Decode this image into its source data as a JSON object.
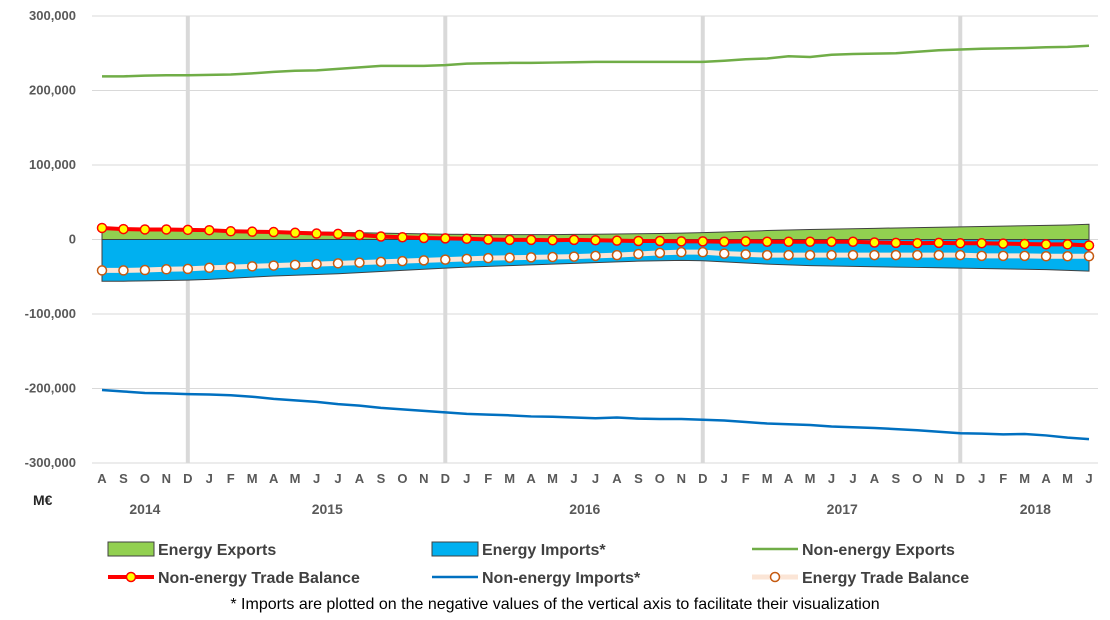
{
  "chart_data": {
    "type": "line",
    "unit_label": "M€",
    "note": "* Imports are plotted on the negative values of the vertical axis to facilitate their visualization",
    "ylim": [
      -300000,
      300000
    ],
    "yticks": [
      300000,
      200000,
      100000,
      0,
      -100000,
      -200000,
      -300000
    ],
    "ytick_labels": [
      "300,000",
      "200,000",
      "100,000",
      "0",
      "-100,000",
      "-200,000",
      "-300,000"
    ],
    "grid": "horizontal",
    "legend_position": "bottom",
    "colors": {
      "energy_exports": "#92D050",
      "energy_imports": "#00B0F0",
      "non_energy_exports": "#70AD47",
      "non_energy_imports": "#0070C0",
      "non_energy_trade_balance": "#FF0000",
      "non_energy_balance_marker": "#FFFF00",
      "energy_trade_balance_marker_edge": "#C55A11",
      "energy_trade_balance_line": "#FBE5D6",
      "grid": "#D9D9D9",
      "year_separator": "#D9D9D9"
    },
    "month_labels": [
      "A",
      "S",
      "O",
      "N",
      "D",
      "J",
      "F",
      "M",
      "A",
      "M",
      "J",
      "J",
      "A",
      "S",
      "O",
      "N",
      "D",
      "J",
      "F",
      "M",
      "A",
      "M",
      "J",
      "J",
      "A",
      "S",
      "O",
      "N",
      "D",
      "J",
      "F",
      "M",
      "A",
      "M",
      "J",
      "J",
      "A",
      "S",
      "O",
      "N",
      "D",
      "J",
      "F",
      "M",
      "A",
      "M",
      "J"
    ],
    "years": [
      {
        "label": "2014",
        "start": 0,
        "end": 4
      },
      {
        "label": "2015",
        "start": 5,
        "end": 16
      },
      {
        "label": "2016",
        "start": 17,
        "end": 28
      },
      {
        "label": "2017",
        "start": 29,
        "end": 40
      },
      {
        "label": "2018",
        "start": 41,
        "end": 46
      }
    ],
    "year_separators_after_index": [
      4,
      16,
      28,
      40
    ],
    "legend": [
      {
        "key": "energy_exports",
        "label": "Energy Exports",
        "kind": "area"
      },
      {
        "key": "energy_imports",
        "label": "Energy Imports*",
        "kind": "area"
      },
      {
        "key": "non_energy_exports",
        "label": "Non-energy Exports",
        "kind": "line"
      },
      {
        "key": "non_energy_trade_balance",
        "label": "Non-energy Trade Balance",
        "kind": "line-marker"
      },
      {
        "key": "non_energy_imports",
        "label": "Non-energy Imports*",
        "kind": "line"
      },
      {
        "key": "energy_trade_balance",
        "label": "Energy Trade Balance",
        "kind": "line-marker"
      }
    ],
    "series": [
      {
        "key": "energy_exports",
        "name": "Energy Exports",
        "values": [
          14500,
          14200,
          14000,
          13800,
          13600,
          13200,
          12500,
          11800,
          11200,
          10500,
          10000,
          9500,
          9000,
          8500,
          8000,
          7500,
          7000,
          6800,
          6600,
          6500,
          6500,
          6600,
          6800,
          7000,
          7300,
          7700,
          8100,
          8600,
          9200,
          10000,
          11000,
          12000,
          12800,
          13500,
          14000,
          14500,
          15000,
          15500,
          16000,
          16500,
          17000,
          17500,
          18000,
          18500,
          19000,
          19500,
          20500
        ]
      },
      {
        "key": "energy_imports",
        "name": "Energy Imports*",
        "values": [
          -56000,
          -56000,
          -55500,
          -55000,
          -54500,
          -53500,
          -52000,
          -50500,
          -49000,
          -48000,
          -47000,
          -46000,
          -44500,
          -43000,
          -41500,
          -40000,
          -38500,
          -37000,
          -36000,
          -35000,
          -34000,
          -33000,
          -32000,
          -31000,
          -30000,
          -29000,
          -28500,
          -28000,
          -28500,
          -30000,
          -31500,
          -33000,
          -34000,
          -35000,
          -35500,
          -36000,
          -36500,
          -37000,
          -37500,
          -38000,
          -38500,
          -39000,
          -39500,
          -40000,
          -40500,
          -41500,
          -42500
        ]
      },
      {
        "key": "non_energy_exports",
        "name": "Non-energy Exports",
        "values": [
          219000,
          219000,
          220000,
          220500,
          220500,
          221000,
          221500,
          223000,
          225000,
          226500,
          227000,
          229000,
          231000,
          233000,
          233000,
          233000,
          234000,
          236000,
          236500,
          237000,
          237000,
          237500,
          238000,
          238500,
          238500,
          238500,
          238500,
          238500,
          238500,
          240000,
          242000,
          243000,
          246000,
          245000,
          248000,
          249000,
          249500,
          250000,
          252000,
          254000,
          255000,
          256000,
          256500,
          257000,
          258000,
          258500,
          260000
        ]
      },
      {
        "key": "non_energy_imports",
        "name": "Non-energy Imports*",
        "values": [
          -202000,
          -204000,
          -206000,
          -206500,
          -207500,
          -208000,
          -209000,
          -211000,
          -214000,
          -216000,
          -218000,
          -221000,
          -223000,
          -226000,
          -228000,
          -230000,
          -232000,
          -234000,
          -235000,
          -236000,
          -237500,
          -238000,
          -239000,
          -240000,
          -239000,
          -240500,
          -241000,
          -241000,
          -242000,
          -243000,
          -245000,
          -247000,
          -248000,
          -249000,
          -251000,
          -252000,
          -253000,
          -254500,
          -256000,
          -258000,
          -260000,
          -260500,
          -261500,
          -261000,
          -263000,
          -266000,
          -268000
        ]
      },
      {
        "key": "non_energy_trade_balance",
        "name": "Non-energy Trade Balance",
        "values": [
          15500,
          14000,
          13500,
          13500,
          13000,
          12500,
          11000,
          10500,
          10000,
          9000,
          8000,
          7500,
          6000,
          4000,
          3000,
          2000,
          1500,
          1000,
          0,
          -500,
          -500,
          -1000,
          -500,
          -1000,
          -1500,
          -2000,
          -2000,
          -2500,
          -2500,
          -3000,
          -2500,
          -3000,
          -3000,
          -3000,
          -3000,
          -3000,
          -4000,
          -4500,
          -5000,
          -4500,
          -5000,
          -5000,
          -5500,
          -6000,
          -6500,
          -6500,
          -8000
        ]
      },
      {
        "key": "energy_trade_balance",
        "name": "Energy Trade Balance",
        "values": [
          -41500,
          -41500,
          -41000,
          -40000,
          -39500,
          -38000,
          -37000,
          -36000,
          -35000,
          -34000,
          -33000,
          -32000,
          -31000,
          -30000,
          -29000,
          -28000,
          -27000,
          -26000,
          -25000,
          -24500,
          -24000,
          -23500,
          -23000,
          -22000,
          -21000,
          -19500,
          -18000,
          -17000,
          -17000,
          -19000,
          -20000,
          -21000,
          -21000,
          -21000,
          -21000,
          -21000,
          -21000,
          -21000,
          -21000,
          -21000,
          -21000,
          -22000,
          -22000,
          -22000,
          -22500,
          -22500,
          -22500
        ]
      }
    ]
  }
}
